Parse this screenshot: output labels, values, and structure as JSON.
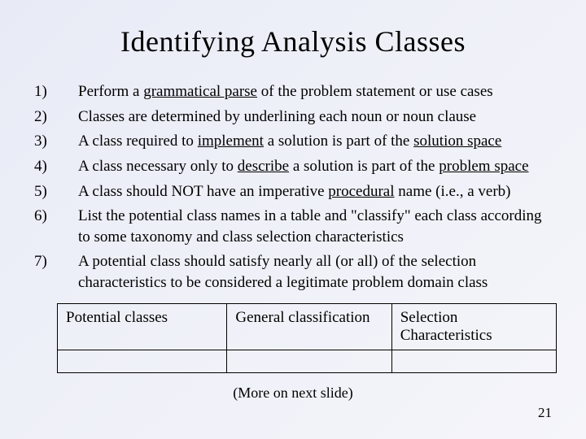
{
  "title": "Identifying Analysis Classes",
  "items": [
    {
      "num": "1)",
      "segments": [
        {
          "t": "Perform a "
        },
        {
          "t": "grammatical parse",
          "u": true
        },
        {
          "t": " of the problem statement or use cases"
        }
      ]
    },
    {
      "num": "2)",
      "segments": [
        {
          "t": "Classes are determined by underlining each noun or noun clause"
        }
      ]
    },
    {
      "num": "3)",
      "segments": [
        {
          "t": "A class required to "
        },
        {
          "t": "implement",
          "u": true
        },
        {
          "t": " a solution is part of the "
        },
        {
          "t": "solution space",
          "u": true
        }
      ]
    },
    {
      "num": "4)",
      "segments": [
        {
          "t": "A class necessary only to "
        },
        {
          "t": "describe",
          "u": true
        },
        {
          "t": " a solution is part of the "
        },
        {
          "t": "problem space",
          "u": true
        }
      ]
    },
    {
      "num": "5)",
      "segments": [
        {
          "t": "A class should NOT have an imperative "
        },
        {
          "t": "procedural",
          "u": true
        },
        {
          "t": " name (i.e., a verb)"
        }
      ]
    },
    {
      "num": "6)",
      "segments": [
        {
          "t": "List the potential class names in a table and \"classify\" each class according to some taxonomy and class selection characteristics"
        }
      ]
    },
    {
      "num": "7)",
      "segments": [
        {
          "t": "A potential class should satisfy nearly all (or all) of the selection characteristics to be considered a legitimate problem domain class"
        }
      ]
    }
  ],
  "table": {
    "columns": [
      "Potential classes",
      "General classification",
      "Selection Characteristics"
    ],
    "col_widths": [
      "34%",
      "33%",
      "33%"
    ]
  },
  "footer": "(More on next slide)",
  "page_number": "21"
}
